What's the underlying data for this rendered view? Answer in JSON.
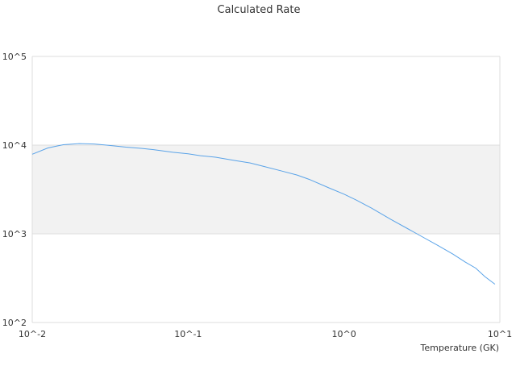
{
  "chart_data": {
    "type": "line",
    "title": "Calculated Rate",
    "xlabel": "Temperature (GK)",
    "ylabel": "",
    "x_scale": "log",
    "y_scale": "log",
    "xlim": [
      0.01,
      10
    ],
    "ylim": [
      100,
      100000
    ],
    "x_ticks": [
      {
        "value": 0.01,
        "label": "10^-2"
      },
      {
        "value": 0.1,
        "label": "10^-1"
      },
      {
        "value": 1,
        "label": "10^0"
      },
      {
        "value": 10,
        "label": "10^1"
      }
    ],
    "y_ticks": [
      {
        "value": 100,
        "label": "10^2"
      },
      {
        "value": 1000,
        "label": "10^3"
      },
      {
        "value": 10000,
        "label": "10^4"
      },
      {
        "value": 100000,
        "label": "10^5"
      }
    ],
    "grid": true,
    "band_colors": [
      "#ffffff",
      "#f2f2f2"
    ],
    "series": [
      {
        "color": "#5aa3e8",
        "x": [
          0.01,
          0.0126,
          0.0158,
          0.02,
          0.025,
          0.03,
          0.04,
          0.05,
          0.06,
          0.08,
          0.1,
          0.12,
          0.15,
          0.2,
          0.25,
          0.3,
          0.4,
          0.5,
          0.6,
          0.8,
          1,
          1.2,
          1.5,
          2,
          2.5,
          3,
          4,
          5,
          6,
          7,
          8,
          9.3
        ],
        "y": [
          7900,
          9300,
          10100,
          10400,
          10300,
          10000,
          9500,
          9200,
          8900,
          8300,
          8000,
          7600,
          7300,
          6700,
          6300,
          5800,
          5100,
          4600,
          4100,
          3300,
          2800,
          2400,
          1950,
          1450,
          1170,
          980,
          740,
          590,
          480,
          410,
          330,
          270
        ]
      }
    ]
  }
}
